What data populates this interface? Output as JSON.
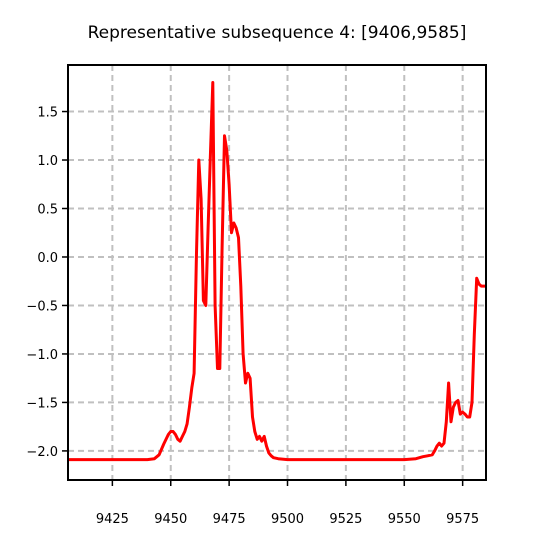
{
  "chart_data": {
    "type": "line",
    "title": "Representative subsequence 4: [9406,9585]",
    "xlabel": "",
    "ylabel": "",
    "xlim": [
      9406,
      9585
    ],
    "ylim": [
      -2.3,
      1.98
    ],
    "grid": true,
    "grid_style": "dashed",
    "xticks": [
      9425,
      9450,
      9475,
      9500,
      9525,
      9550,
      9575
    ],
    "xtick_labels": [
      "9425",
      "9450",
      "9475",
      "9500",
      "9525",
      "9550",
      "9575"
    ],
    "yticks": [
      1.5,
      1.0,
      0.5,
      0.0,
      -0.5,
      -1.0,
      -1.5,
      -2.0
    ],
    "ytick_labels": [
      "1.5",
      "1.0",
      "0.5",
      "0.0",
      "−0.5",
      "−1.0",
      "−1.5",
      "−2.0"
    ],
    "colors": {
      "series": "#ff0000",
      "grid": "#c0c0c0",
      "axes": "#000000"
    },
    "series": [
      {
        "x": [
          9406,
          9420,
          9430,
          9440,
          9443,
          9445,
          9447,
          9449,
          9450,
          9451,
          9452,
          9453,
          9454,
          9455,
          9456,
          9457,
          9458,
          9459,
          9460,
          9461,
          9462,
          9463,
          9464,
          9465,
          9466,
          9467,
          9468,
          9469,
          9470,
          9471,
          9472,
          9473,
          9474,
          9475,
          9476,
          9477,
          9478,
          9479,
          9480,
          9481,
          9482,
          9483,
          9484,
          9485,
          9486,
          9487,
          9488,
          9489,
          9490,
          9491,
          9492,
          9493,
          9494,
          9496,
          9500,
          9510,
          9520,
          9530,
          9540,
          9550,
          9555,
          9558,
          9560,
          9562,
          9563,
          9564,
          9565,
          9566,
          9567,
          9568,
          9569,
          9570,
          9571,
          9572,
          9573,
          9574,
          9575,
          9576,
          9577,
          9578,
          9579,
          9580,
          9581,
          9582,
          9583,
          9584,
          9585
        ],
        "y": [
          -2.09,
          -2.09,
          -2.09,
          -2.09,
          -2.08,
          -2.04,
          -1.93,
          -1.83,
          -1.8,
          -1.8,
          -1.83,
          -1.88,
          -1.9,
          -1.85,
          -1.8,
          -1.72,
          -1.55,
          -1.35,
          -1.2,
          0.0,
          1.0,
          0.6,
          -0.45,
          -0.5,
          0.3,
          1.05,
          1.8,
          -0.5,
          -1.15,
          -1.15,
          0.1,
          1.25,
          1.1,
          0.75,
          0.25,
          0.35,
          0.3,
          0.2,
          -0.3,
          -1.0,
          -1.3,
          -1.2,
          -1.25,
          -1.65,
          -1.8,
          -1.88,
          -1.85,
          -1.9,
          -1.85,
          -1.95,
          -2.02,
          -2.05,
          -2.07,
          -2.08,
          -2.09,
          -2.09,
          -2.09,
          -2.09,
          -2.09,
          -2.09,
          -2.08,
          -2.06,
          -2.05,
          -2.04,
          -2.0,
          -1.95,
          -1.92,
          -1.95,
          -1.92,
          -1.7,
          -1.3,
          -1.7,
          -1.55,
          -1.5,
          -1.48,
          -1.62,
          -1.6,
          -1.62,
          -1.65,
          -1.65,
          -1.5,
          -0.8,
          -0.22,
          -0.28,
          -0.3,
          -0.3,
          -0.3
        ]
      }
    ]
  }
}
